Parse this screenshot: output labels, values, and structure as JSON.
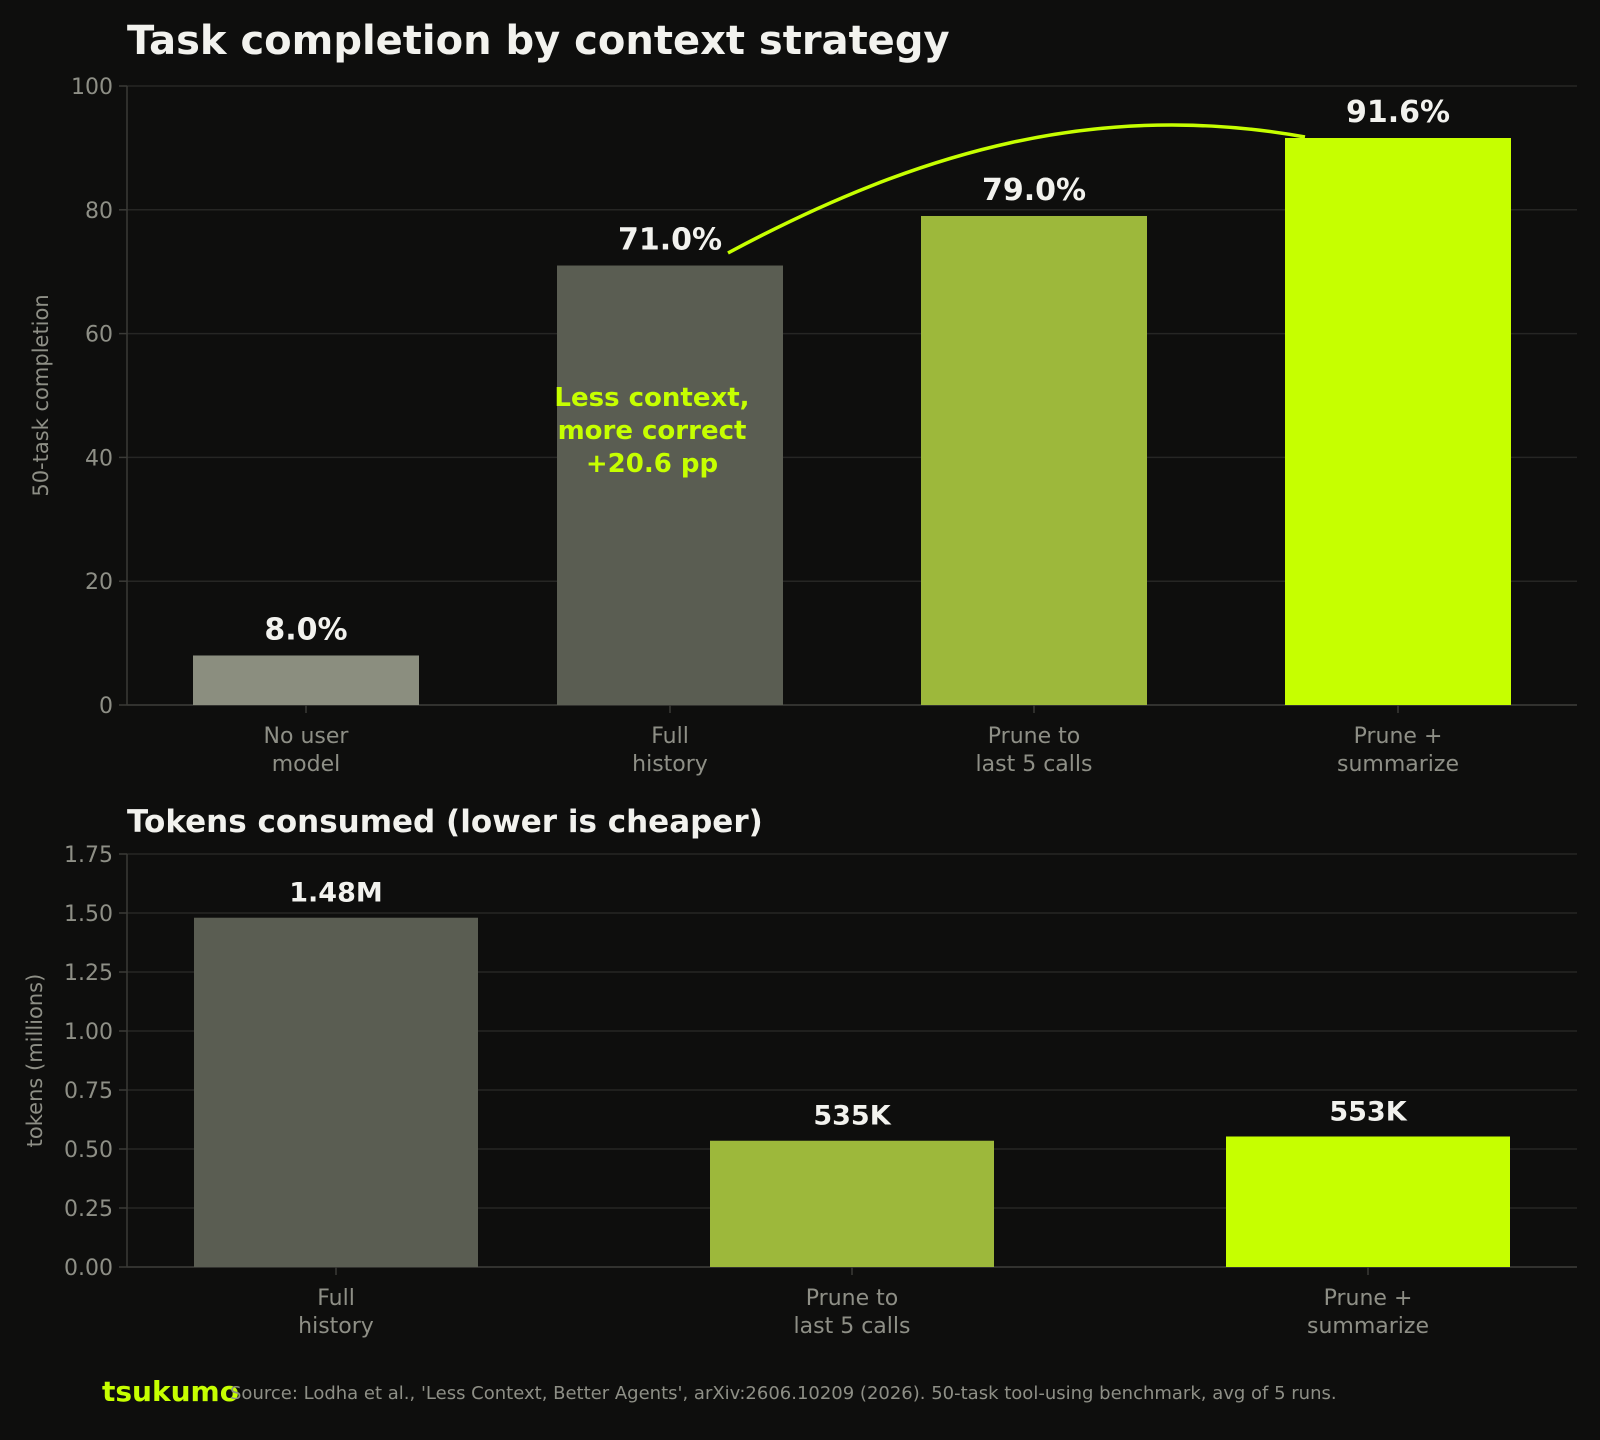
{
  "chart_data": [
    {
      "type": "bar",
      "title": "Task completion by context strategy",
      "ylabel": "50-task completion",
      "ylim": [
        0,
        100
      ],
      "yticks": [
        "0",
        "20",
        "40",
        "60",
        "80",
        "100"
      ],
      "categories": [
        "No user\nmodel",
        "Full\nhistory",
        "Prune to\nlast 5 calls",
        "Prune +\nsummarize"
      ],
      "values": [
        8.0,
        71.0,
        79.0,
        91.6
      ],
      "value_labels": [
        "8.0%",
        "71.0%",
        "79.0%",
        "91.6%"
      ],
      "colors": [
        "#8b8e7f",
        "#5a5d52",
        "#9db83b",
        "#c6ff00"
      ],
      "annotation": {
        "lines": [
          "Less context,",
          "more correct",
          "+20.6 pp"
        ],
        "color": "#c6ff00"
      },
      "grid": true
    },
    {
      "type": "bar",
      "title": "Tokens consumed (lower is cheaper)",
      "ylabel": "tokens (millions)",
      "ylim": [
        0,
        1.75
      ],
      "yticks": [
        "0.00",
        "0.25",
        "0.50",
        "0.75",
        "1.00",
        "1.25",
        "1.50",
        "1.75"
      ],
      "categories": [
        "Full\nhistory",
        "Prune to\nlast 5 calls",
        "Prune +\nsummarize"
      ],
      "values": [
        1.48,
        0.535,
        0.553
      ],
      "value_labels": [
        "1.48M",
        "535K",
        "553K"
      ],
      "colors": [
        "#5a5d52",
        "#9db83b",
        "#c6ff00"
      ],
      "grid": true
    }
  ],
  "footer": {
    "brand": "tsukumo",
    "brand_color": "#c6ff00",
    "source": "Source: Lodha et al., 'Less Context, Better Agents', arXiv:2606.10209 (2026). 50-task tool-using benchmark, avg of 5 runs."
  }
}
